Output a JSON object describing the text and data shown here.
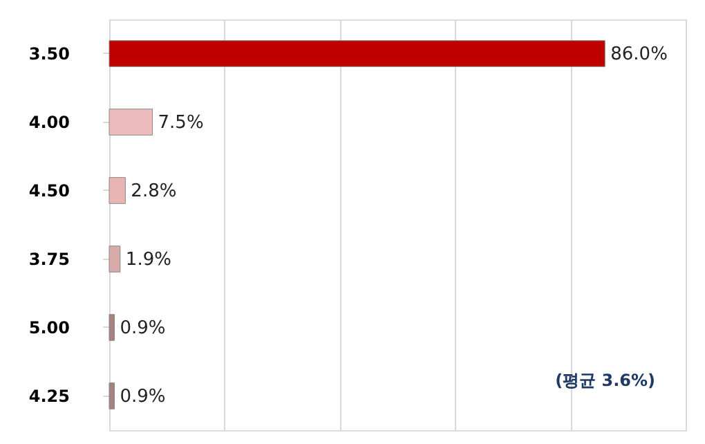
{
  "chart_data": {
    "type": "bar",
    "orientation": "horizontal",
    "categories": [
      "3.50",
      "4.00",
      "4.50",
      "3.75",
      "5.00",
      "4.25"
    ],
    "values": [
      86.0,
      7.5,
      2.8,
      1.9,
      0.9,
      0.9
    ],
    "value_labels": [
      "86.0%",
      "7.5%",
      "2.8%",
      "1.9%",
      "0.9%",
      "0.9%"
    ],
    "colors": [
      "#c00000",
      "#ecbcbc",
      "#e8b4b4",
      "#d8aaaa",
      "#a88080",
      "#a88080"
    ],
    "xlim": [
      0,
      100
    ],
    "xticks": [
      {
        "value": 0,
        "label": null
      },
      {
        "value": 20,
        "label": null
      },
      {
        "value": 40,
        "label": null
      },
      {
        "value": 60,
        "label": null
      },
      {
        "value": 80,
        "label": null
      },
      {
        "value": 100,
        "label": null
      }
    ],
    "grid": "x",
    "tick_labels": "y",
    "annotations": [
      "(평균 3.6%)"
    ]
  }
}
